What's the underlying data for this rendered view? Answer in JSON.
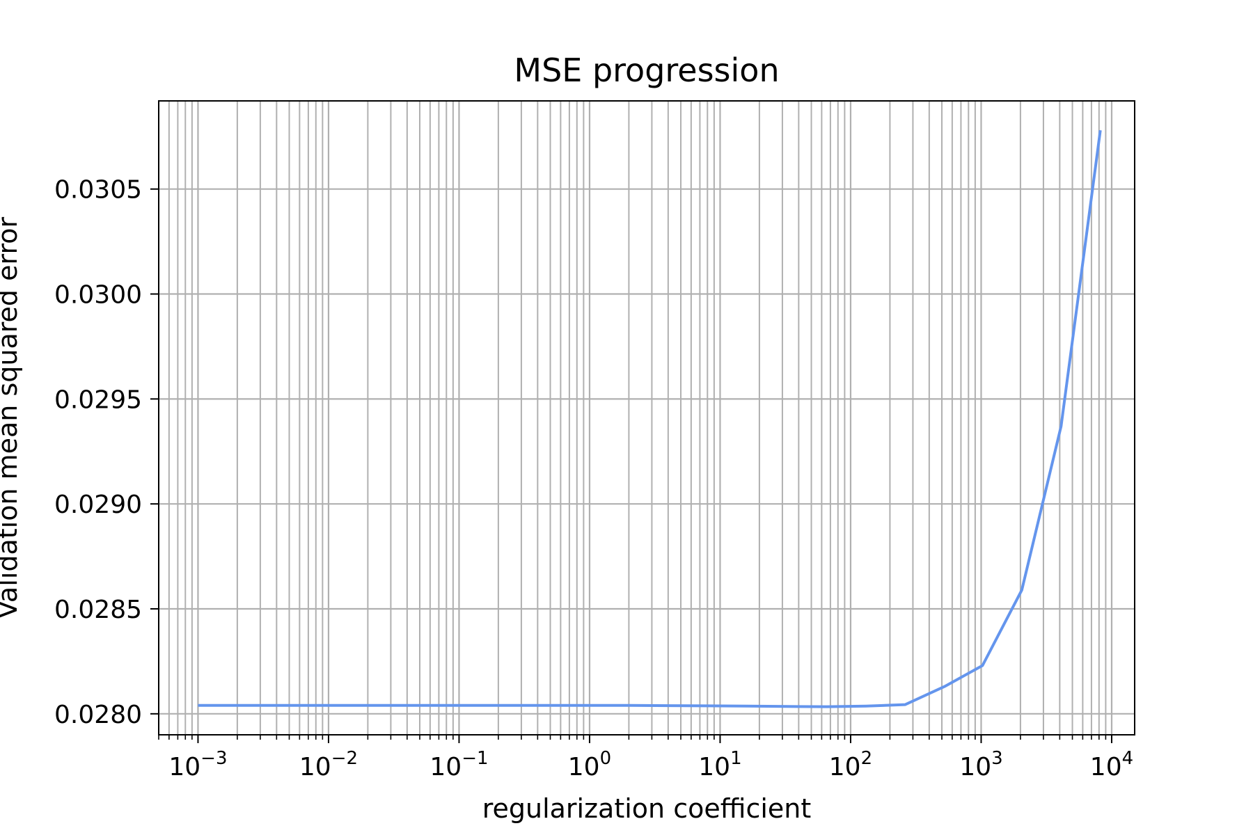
{
  "chart_data": {
    "type": "line",
    "title": "MSE progression",
    "xlabel": "regularization coefficient",
    "ylabel": "Validation mean squared error",
    "xscale": "log",
    "xlim": [
      0.0005,
      15000
    ],
    "ylim": [
      0.0279,
      0.03092
    ],
    "grid": true,
    "grid_minor_x": true,
    "legend": "none",
    "x_ticks": [
      {
        "base": "10",
        "exp": "−3",
        "value": 0.001
      },
      {
        "base": "10",
        "exp": "−2",
        "value": 0.01
      },
      {
        "base": "10",
        "exp": "−1",
        "value": 0.1
      },
      {
        "base": "10",
        "exp": "0",
        "value": 1
      },
      {
        "base": "10",
        "exp": "1",
        "value": 10
      },
      {
        "base": "10",
        "exp": "2",
        "value": 100
      },
      {
        "base": "10",
        "exp": "3",
        "value": 1000
      },
      {
        "base": "10",
        "exp": "4",
        "value": 10000
      }
    ],
    "y_ticks": [
      {
        "label": "0.0280",
        "value": 0.028
      },
      {
        "label": "0.0285",
        "value": 0.0285
      },
      {
        "label": "0.0290",
        "value": 0.029
      },
      {
        "label": "0.0295",
        "value": 0.0295
      },
      {
        "label": "0.0300",
        "value": 0.03
      },
      {
        "label": "0.0305",
        "value": 0.0305
      }
    ],
    "series": [
      {
        "color": "#6495ED",
        "x": [
          0.001,
          0.002,
          0.004,
          0.008,
          0.016,
          0.032,
          0.064,
          0.128,
          0.256,
          0.512,
          1.024,
          2.048,
          4.096,
          8.192,
          16.384,
          32.768,
          65.536,
          131.072,
          262.144,
          524.288,
          1024,
          2048,
          4096,
          8192
        ],
        "y": [
          0.02804,
          0.02804,
          0.02804,
          0.02804,
          0.02804,
          0.02804,
          0.02804,
          0.02804,
          0.02804,
          0.02804,
          0.02804,
          0.02804,
          0.028039,
          0.028038,
          0.028037,
          0.028035,
          0.028034,
          0.028037,
          0.028044,
          0.02813,
          0.02823,
          0.02859,
          0.02937,
          0.03078
        ]
      }
    ],
    "colors": {
      "line": "#6495ED",
      "grid": "#b0b0b0",
      "axes": "#000000"
    }
  }
}
